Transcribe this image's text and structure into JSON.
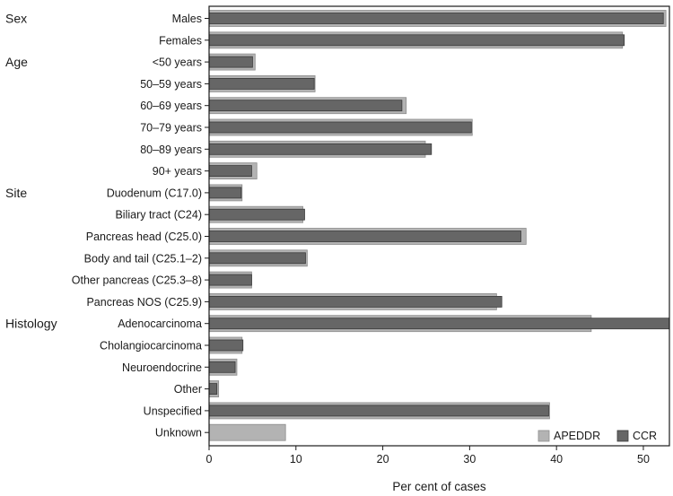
{
  "chart_data": {
    "type": "bar",
    "orientation": "horizontal",
    "xlabel": "Per cent of cases",
    "xlim": [
      0,
      53
    ],
    "xticks": [
      0,
      10,
      20,
      30,
      40,
      50
    ],
    "legend_position": "bottom-right",
    "groups": [
      {
        "name": "Sex",
        "start_index": 0
      },
      {
        "name": "Age",
        "start_index": 2
      },
      {
        "name": "Site",
        "start_index": 8
      },
      {
        "name": "Histology",
        "start_index": 14
      }
    ],
    "categories": [
      "Males",
      "Females",
      "<50 years",
      "50–59 years",
      "60–69 years",
      "70–79 years",
      "80–89 years",
      "90+ years",
      "Duodenum (C17.0)",
      "Biliary tract (C24)",
      "Pancreas head (C25.0)",
      "Body and tail (C25.1–2)",
      "Other pancreas (C25.3–8)",
      "Pancreas NOS (C25.9)",
      "Adenocarcinoma",
      "Cholangiocarcinoma",
      "Neuroendocrine",
      "Other",
      "Unspecified",
      "Unknown"
    ],
    "series": [
      {
        "name": "APEDDR",
        "color": "#b3b3b3",
        "values": [
          52.6,
          47.6,
          5.3,
          12.2,
          22.7,
          30.3,
          24.9,
          5.5,
          3.8,
          10.8,
          36.5,
          11.3,
          4.9,
          33.1,
          44.0,
          3.8,
          3.2,
          1.1,
          39.2,
          8.8
        ]
      },
      {
        "name": "CCR",
        "color": "#666666",
        "values": [
          52.3,
          47.8,
          5.0,
          12.1,
          22.2,
          30.2,
          25.6,
          4.9,
          3.7,
          11.0,
          35.9,
          11.1,
          4.9,
          33.7,
          53.2,
          3.9,
          3.0,
          0.9,
          39.1,
          0
        ]
      }
    ]
  }
}
